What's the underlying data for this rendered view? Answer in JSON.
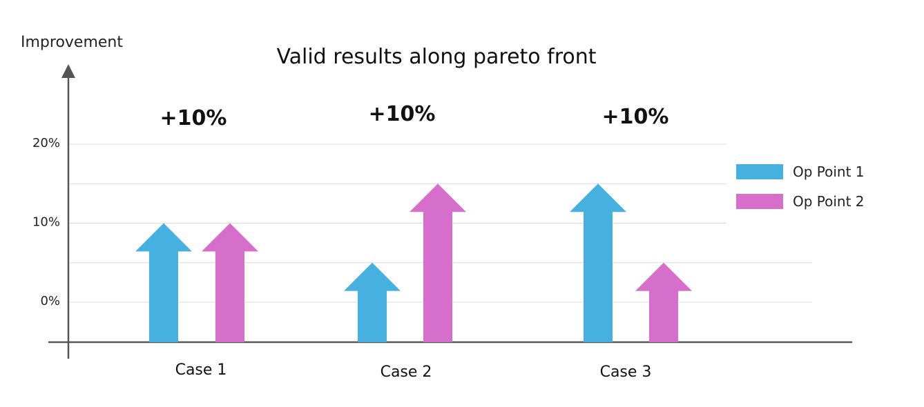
{
  "chart_data": {
    "type": "bar",
    "title": "Valid results along pareto front",
    "ylabel": "Improvement",
    "xlabel": "",
    "yticks": [
      {
        "value": 0,
        "label": "0%"
      },
      {
        "value": 10,
        "label": "10%"
      },
      {
        "value": 20,
        "label": "20%"
      }
    ],
    "ylim": [
      -5.4,
      26
    ],
    "grid": true,
    "legend_position": "right",
    "categories": [
      "Case 1",
      "Case 2",
      "Case 3"
    ],
    "series": [
      {
        "name": "Op Point 1",
        "color": "#46b0e0",
        "values": [
          10,
          5,
          15
        ]
      },
      {
        "name": "Op Point 2",
        "color": "#d66fcc",
        "values": [
          10,
          15,
          5
        ]
      }
    ],
    "annotations": [
      "+10%",
      "+10%",
      "+10%"
    ],
    "marker": "arrow"
  }
}
